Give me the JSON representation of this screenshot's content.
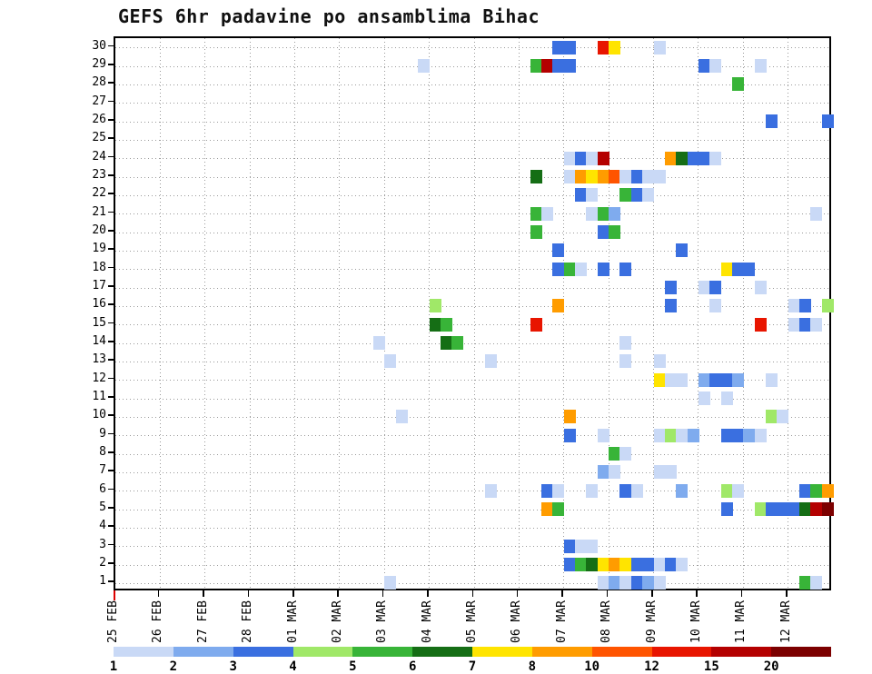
{
  "title": "GEFS 6hr padavine po ansamblima Bihac",
  "chart_data": {
    "type": "heatmap",
    "description": "GEFS ensemble 6-hourly precipitation per member (1-30) for Bihac; x axis time in 6h steps, y axis ensemble member, cell color = precipitation amount (mm/6h)",
    "x_tick_labels": [
      "25 FEB",
      "26 FEB",
      "27 FEB",
      "28 FEB",
      "01 MAR",
      "02 MAR",
      "03 MAR",
      "04 MAR",
      "05 MAR",
      "06 MAR",
      "07 MAR",
      "08 MAR",
      "09 MAR",
      "10 MAR",
      "11 MAR",
      "12 MAR"
    ],
    "y_tick_labels": [
      "1",
      "2",
      "3",
      "4",
      "5",
      "6",
      "7",
      "8",
      "9",
      "10",
      "11",
      "12",
      "13",
      "14",
      "15",
      "16",
      "17",
      "18",
      "19",
      "20",
      "21",
      "22",
      "23",
      "24",
      "25",
      "26",
      "27",
      "28",
      "29",
      "30"
    ],
    "members": 30,
    "steps_per_day": 4,
    "n_steps": 64,
    "grid": true,
    "colorbar": {
      "thresholds": [
        1,
        2,
        3,
        4,
        5,
        6,
        7,
        8,
        10,
        12,
        15,
        20
      ],
      "labels": [
        "1",
        "2",
        "3",
        "4",
        "5",
        "6",
        "7",
        "8",
        "10",
        "12",
        "15",
        "20"
      ],
      "colors": [
        "#c9d9f6",
        "#7fabee",
        "#3a6fe0",
        "#a0e868",
        "#38b438",
        "#156e15",
        "#ffe400",
        "#ff9c00",
        "#ff5400",
        "#e81500",
        "#b40000",
        "#7c0000"
      ]
    },
    "cells": [
      [
        30,
        39,
        3
      ],
      [
        30,
        40,
        3
      ],
      [
        30,
        43,
        12
      ],
      [
        30,
        44,
        7
      ],
      [
        30,
        48,
        1
      ],
      [
        29,
        27,
        1
      ],
      [
        29,
        37,
        5
      ],
      [
        29,
        38,
        15
      ],
      [
        29,
        39,
        3
      ],
      [
        29,
        40,
        3
      ],
      [
        29,
        52,
        3
      ],
      [
        29,
        53,
        1
      ],
      [
        29,
        57,
        1
      ],
      [
        28,
        55,
        5
      ],
      [
        26,
        58,
        3
      ],
      [
        26,
        63,
        3
      ],
      [
        24,
        40,
        1
      ],
      [
        24,
        41,
        3
      ],
      [
        24,
        42,
        1
      ],
      [
        24,
        43,
        15
      ],
      [
        24,
        49,
        8
      ],
      [
        24,
        50,
        6
      ],
      [
        24,
        51,
        3
      ],
      [
        24,
        52,
        3
      ],
      [
        24,
        53,
        1
      ],
      [
        23,
        37,
        6
      ],
      [
        23,
        40,
        1
      ],
      [
        23,
        41,
        8
      ],
      [
        23,
        42,
        7
      ],
      [
        23,
        43,
        8
      ],
      [
        23,
        44,
        10
      ],
      [
        23,
        45,
        1
      ],
      [
        23,
        46,
        3
      ],
      [
        23,
        47,
        1
      ],
      [
        23,
        48,
        1
      ],
      [
        22,
        41,
        3
      ],
      [
        22,
        42,
        1
      ],
      [
        22,
        45,
        5
      ],
      [
        22,
        46,
        3
      ],
      [
        22,
        47,
        1
      ],
      [
        21,
        37,
        5
      ],
      [
        21,
        38,
        1
      ],
      [
        21,
        42,
        1
      ],
      [
        21,
        43,
        5
      ],
      [
        21,
        44,
        2
      ],
      [
        21,
        62,
        1
      ],
      [
        20,
        37,
        5
      ],
      [
        20,
        43,
        3
      ],
      [
        20,
        44,
        5
      ],
      [
        19,
        39,
        3
      ],
      [
        19,
        50,
        3
      ],
      [
        18,
        39,
        3
      ],
      [
        18,
        40,
        5
      ],
      [
        18,
        41,
        1
      ],
      [
        18,
        43,
        3
      ],
      [
        18,
        45,
        3
      ],
      [
        18,
        54,
        7
      ],
      [
        18,
        55,
        3
      ],
      [
        18,
        56,
        3
      ],
      [
        17,
        49,
        3
      ],
      [
        17,
        52,
        1
      ],
      [
        17,
        53,
        3
      ],
      [
        17,
        57,
        1
      ],
      [
        16,
        28,
        4
      ],
      [
        16,
        39,
        8
      ],
      [
        16,
        49,
        3
      ],
      [
        16,
        53,
        1
      ],
      [
        16,
        60,
        1
      ],
      [
        16,
        61,
        3
      ],
      [
        16,
        63,
        4
      ],
      [
        15,
        28,
        6
      ],
      [
        15,
        29,
        5
      ],
      [
        15,
        37,
        12
      ],
      [
        15,
        57,
        12
      ],
      [
        15,
        60,
        1
      ],
      [
        15,
        61,
        3
      ],
      [
        15,
        62,
        1
      ],
      [
        14,
        23,
        1
      ],
      [
        14,
        29,
        6
      ],
      [
        14,
        30,
        5
      ],
      [
        14,
        45,
        1
      ],
      [
        13,
        24,
        1
      ],
      [
        13,
        33,
        1
      ],
      [
        13,
        45,
        1
      ],
      [
        13,
        48,
        1
      ],
      [
        12,
        48,
        7
      ],
      [
        12,
        49,
        1
      ],
      [
        12,
        50,
        1
      ],
      [
        12,
        52,
        2
      ],
      [
        12,
        53,
        3
      ],
      [
        12,
        54,
        3
      ],
      [
        12,
        55,
        2
      ],
      [
        12,
        58,
        1
      ],
      [
        11,
        52,
        1
      ],
      [
        11,
        54,
        1
      ],
      [
        10,
        25,
        1
      ],
      [
        10,
        40,
        8
      ],
      [
        10,
        58,
        4
      ],
      [
        10,
        59,
        1
      ],
      [
        9,
        40,
        3
      ],
      [
        9,
        43,
        1
      ],
      [
        9,
        48,
        1
      ],
      [
        9,
        49,
        4
      ],
      [
        9,
        50,
        1
      ],
      [
        9,
        51,
        2
      ],
      [
        9,
        54,
        3
      ],
      [
        9,
        55,
        3
      ],
      [
        9,
        56,
        2
      ],
      [
        9,
        57,
        1
      ],
      [
        8,
        44,
        5
      ],
      [
        8,
        45,
        1
      ],
      [
        7,
        43,
        2
      ],
      [
        7,
        44,
        1
      ],
      [
        7,
        48,
        1
      ],
      [
        7,
        49,
        1
      ],
      [
        6,
        33,
        1
      ],
      [
        6,
        38,
        3
      ],
      [
        6,
        39,
        1
      ],
      [
        6,
        42,
        1
      ],
      [
        6,
        45,
        3
      ],
      [
        6,
        46,
        1
      ],
      [
        6,
        50,
        2
      ],
      [
        6,
        54,
        4
      ],
      [
        6,
        55,
        1
      ],
      [
        6,
        61,
        3
      ],
      [
        6,
        62,
        5
      ],
      [
        6,
        63,
        8
      ],
      [
        5,
        38,
        8
      ],
      [
        5,
        39,
        5
      ],
      [
        5,
        54,
        3
      ],
      [
        5,
        57,
        4
      ],
      [
        5,
        58,
        3
      ],
      [
        5,
        59,
        3
      ],
      [
        5,
        60,
        3
      ],
      [
        5,
        61,
        6
      ],
      [
        5,
        62,
        15
      ],
      [
        5,
        63,
        20
      ],
      [
        3,
        40,
        3
      ],
      [
        3,
        41,
        1
      ],
      [
        3,
        42,
        1
      ],
      [
        2,
        40,
        3
      ],
      [
        2,
        41,
        5
      ],
      [
        2,
        42,
        6
      ],
      [
        2,
        43,
        7
      ],
      [
        2,
        44,
        8
      ],
      [
        2,
        45,
        7
      ],
      [
        2,
        46,
        3
      ],
      [
        2,
        47,
        3
      ],
      [
        2,
        48,
        1
      ],
      [
        2,
        49,
        3
      ],
      [
        2,
        50,
        1
      ],
      [
        1,
        24,
        1
      ],
      [
        1,
        43,
        1
      ],
      [
        1,
        44,
        2
      ],
      [
        1,
        45,
        1
      ],
      [
        1,
        46,
        3
      ],
      [
        1,
        47,
        2
      ],
      [
        1,
        48,
        1
      ],
      [
        1,
        61,
        5
      ],
      [
        1,
        62,
        1
      ]
    ]
  }
}
